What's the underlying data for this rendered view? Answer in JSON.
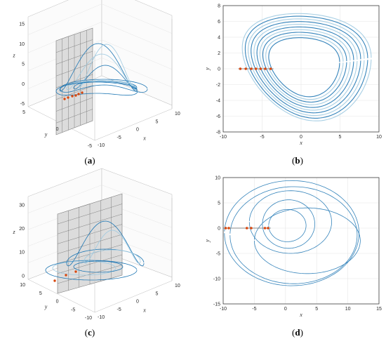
{
  "colors": {
    "trajectory": "#1f77b4",
    "trajectory_light": "#9ecae1",
    "section_points": "#d9480f",
    "plane_fill": "#d9d9d9",
    "grid": "#e6e6e6",
    "axis": "#262626"
  },
  "chart_data": [
    {
      "id": "a",
      "caption": "a",
      "type": "line",
      "projection": "3d",
      "xlabel": "x",
      "ylabel": "y",
      "zlabel": "z",
      "xticks": [
        "-10",
        "-5",
        "0",
        "5",
        "10"
      ],
      "yticks": [
        "5",
        "0",
        "-5"
      ],
      "zticks": [
        "-5",
        "0",
        "5",
        "10",
        "15"
      ],
      "zlim": [
        -5,
        15
      ],
      "section_plane": "y = 0",
      "grid": true
    },
    {
      "id": "b",
      "caption": "b",
      "type": "line",
      "xlabel": "x",
      "ylabel": "y",
      "xlim": [
        -10,
        10
      ],
      "ylim": [
        -8,
        8
      ],
      "xticks": [
        "-10",
        "-5",
        "0",
        "5",
        "10"
      ],
      "yticks": [
        "-8",
        "-6",
        "-4",
        "-2",
        "0",
        "2",
        "4",
        "6",
        "8"
      ],
      "section_points_x": [
        -7.8,
        -7.1,
        -6.4,
        -5.8,
        -5.2,
        -4.6,
        -3.9
      ],
      "section_points_y": 0,
      "grid": true
    },
    {
      "id": "c",
      "caption": "c",
      "type": "line",
      "projection": "3d",
      "xlabel": "x",
      "ylabel": "y",
      "zlabel": "z",
      "xticks": [
        "-10",
        "-5",
        "0",
        "5",
        "10"
      ],
      "yticks": [
        "10",
        "5",
        "0",
        "-5",
        "-10"
      ],
      "zticks": [
        "0",
        "10",
        "20",
        "30"
      ],
      "zlim": [
        0,
        35
      ],
      "section_plane": "y = 0",
      "grid": true
    },
    {
      "id": "d",
      "caption": "d",
      "type": "line",
      "xlabel": "x",
      "ylabel": "y",
      "xlim": [
        -10,
        15
      ],
      "ylim": [
        -15,
        10
      ],
      "xticks": [
        "-10",
        "-5",
        "0",
        "5",
        "10",
        "15"
      ],
      "yticks": [
        "-15",
        "-10",
        "-5",
        "0",
        "5",
        "10"
      ],
      "section_points_x": [
        -9.6,
        -9.1,
        -6.2,
        -5.5,
        -3.3,
        -2.8
      ],
      "section_points_y": 0,
      "grid": true
    }
  ]
}
